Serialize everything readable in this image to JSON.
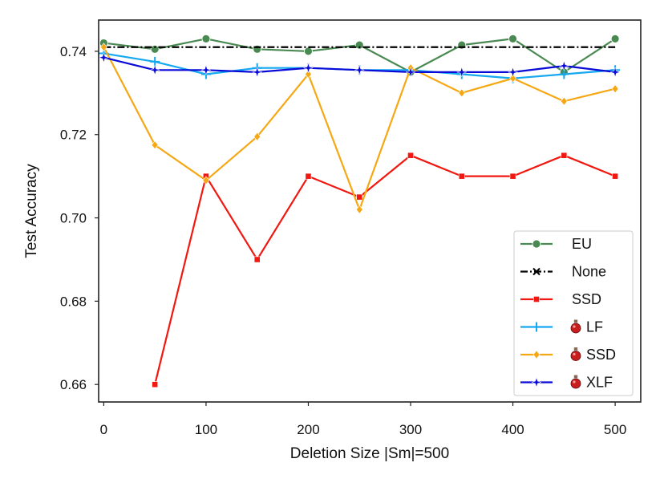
{
  "chart_data": {
    "type": "line",
    "title": "",
    "xlabel": "Deletion Size |Sm|=500",
    "ylabel": "Test Accuracy",
    "x": [
      0,
      50,
      100,
      150,
      200,
      250,
      300,
      350,
      400,
      450,
      500
    ],
    "xlim": [
      -5,
      525
    ],
    "ylim": [
      0.6558,
      0.7475
    ],
    "xticks": [
      0,
      100,
      200,
      300,
      400,
      500
    ],
    "xtick_labels": [
      "0",
      "100",
      "200",
      "300",
      "400",
      "500"
    ],
    "yticks": [
      0.66,
      0.68,
      0.7,
      0.72,
      0.74
    ],
    "ytick_labels": [
      "0.66",
      "0.68",
      "0.70",
      "0.72",
      "0.74"
    ],
    "grid": false,
    "legend_position": "bottom-right",
    "series": [
      {
        "name": "EU",
        "color": "#4a8a52",
        "marker": "circle",
        "dash": "",
        "potion": false,
        "values": [
          0.742,
          0.7405,
          0.743,
          0.7405,
          0.74,
          0.7415,
          0.735,
          0.7415,
          0.743,
          0.735,
          0.743
        ]
      },
      {
        "name": "None",
        "color": "#000000",
        "marker": "x",
        "dash": "9,3,2,3",
        "potion": false,
        "values": [
          0.741,
          0.741,
          0.741,
          0.741,
          0.741,
          0.741,
          0.741,
          0.741,
          0.741,
          0.741,
          0.741
        ]
      },
      {
        "name": "SSD",
        "color": "#f01810",
        "marker": "square",
        "dash": "",
        "potion": false,
        "values": [
          null,
          0.66,
          0.71,
          0.69,
          0.71,
          0.705,
          0.715,
          0.71,
          0.71,
          0.715,
          0.71
        ]
      },
      {
        "name": "LF",
        "color": "#14a8f0",
        "marker": "plus",
        "dash": "",
        "potion": true,
        "values": [
          0.7395,
          0.7375,
          0.7345,
          0.736,
          0.736,
          0.7355,
          0.7355,
          0.7345,
          0.7335,
          0.7345,
          0.7355
        ]
      },
      {
        "name": "SSD",
        "color": "#f5a814",
        "marker": "diamond",
        "dash": "",
        "potion": true,
        "values": [
          0.741,
          0.7175,
          0.709,
          0.7195,
          0.7345,
          0.702,
          0.736,
          0.73,
          0.7335,
          0.728,
          0.731
        ]
      },
      {
        "name": "XLF",
        "color": "#0a0ad8",
        "marker": "star",
        "dash": "",
        "potion": true,
        "values": [
          0.7385,
          0.7355,
          0.7355,
          0.735,
          0.736,
          0.7355,
          0.735,
          0.735,
          0.735,
          0.7365,
          0.735
        ]
      }
    ]
  }
}
